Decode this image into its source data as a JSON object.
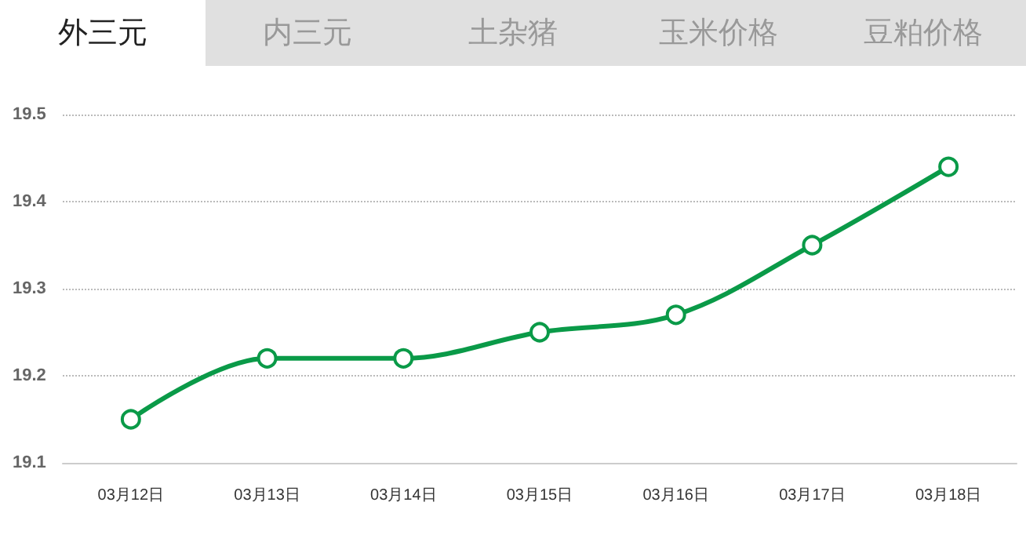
{
  "chart_data": {
    "type": "line",
    "categories": [
      "03月12日",
      "03月13日",
      "03月14日",
      "03月15日",
      "03月16日",
      "03月17日",
      "03月18日"
    ],
    "series": [
      {
        "color": "#0a9a48",
        "values": [
          19.15,
          19.22,
          19.22,
          19.25,
          19.27,
          19.35,
          19.44
        ]
      }
    ],
    "ylim": [
      19.1,
      19.5
    ],
    "yticks": [
      19.1,
      19.2,
      19.3,
      19.4,
      19.5
    ],
    "grid": "y",
    "marker": "circle",
    "line_style": "solid",
    "annotations": [
      "外三元",
      "内三元",
      "土杂猪",
      "玉米价格",
      "豆粕价格"
    ]
  }
}
